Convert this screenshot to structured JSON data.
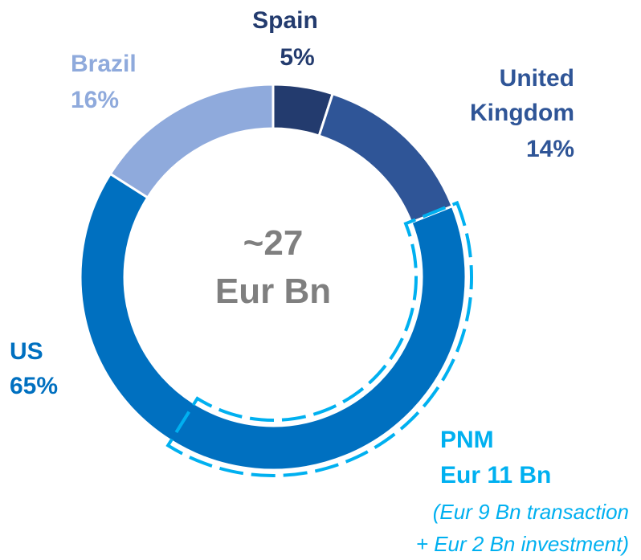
{
  "chart_data": {
    "type": "donut",
    "center_label": "~27",
    "center_unit": "Eur Bn",
    "categories": [
      "Spain",
      "United Kingdom",
      "US",
      "Brazil"
    ],
    "values": [
      5,
      14,
      65,
      16
    ],
    "value_labels": [
      "5%",
      "14%",
      "65%",
      "16%"
    ],
    "colors": [
      "#233b6e",
      "#2f5597",
      "#0070c0",
      "#8faadc"
    ],
    "annotation": {
      "title": "PNM",
      "amount": "Eur 11 Bn",
      "detail_1": "(Eur 9 Bn transaction",
      "detail_2": "+ Eur 2 Bn investment)",
      "color": "#00b0f0"
    }
  }
}
